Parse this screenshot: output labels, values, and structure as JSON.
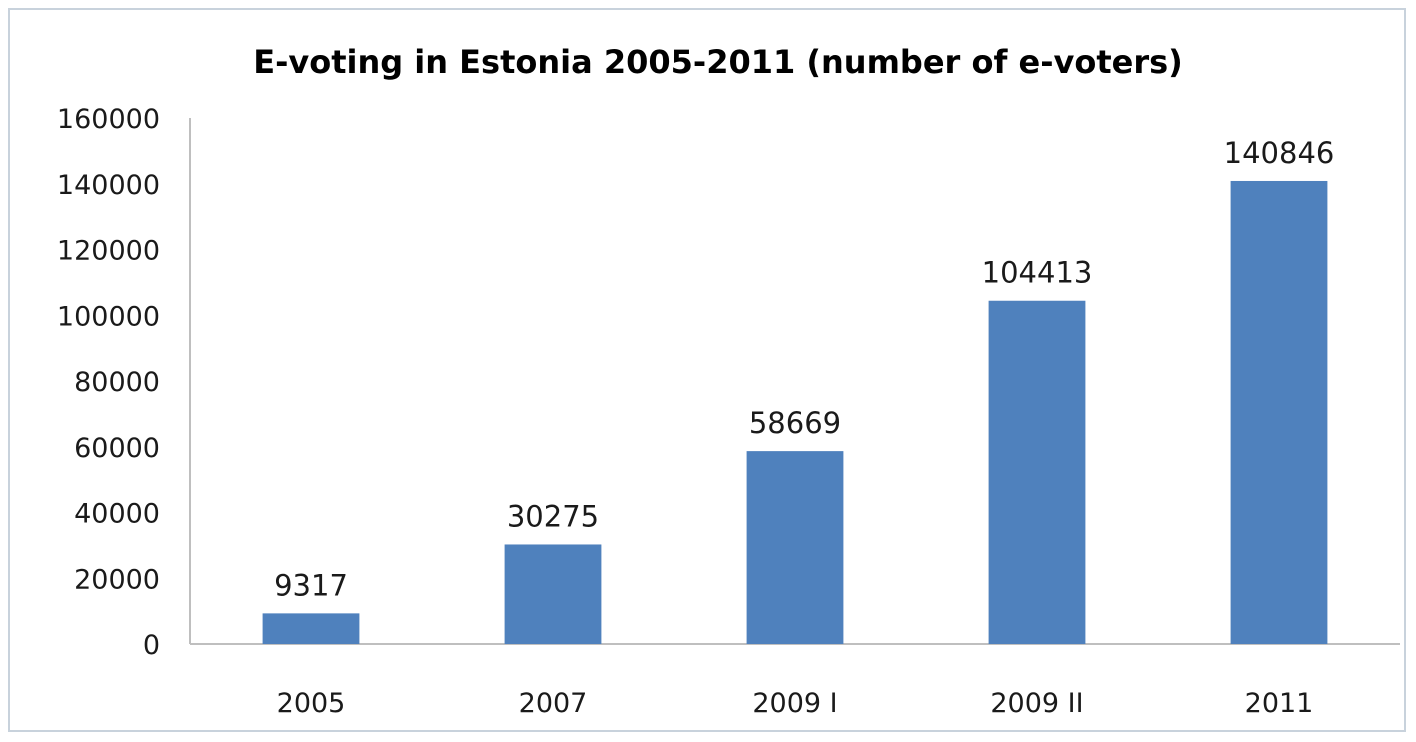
{
  "chart_data": {
    "type": "bar",
    "title": "E-voting in Estonia 2005-2011 (number of e-voters)",
    "xlabel": "",
    "ylabel": "",
    "categories": [
      "2005",
      "2007",
      "2009 I",
      "2009 II",
      "2011"
    ],
    "values": [
      9317,
      30275,
      58669,
      104413,
      140846
    ],
    "data_labels": [
      "9317",
      "30275",
      "58669",
      "104413",
      "140846"
    ],
    "ylim": [
      0,
      160000
    ],
    "yticks": [
      0,
      20000,
      40000,
      60000,
      80000,
      100000,
      120000,
      140000,
      160000
    ],
    "ytick_labels": [
      "0",
      "20000",
      "40000",
      "60000",
      "80000",
      "100000",
      "120000",
      "140000",
      "160000"
    ],
    "grid": false,
    "legend": "none",
    "colors": {
      "bar": "#4f81bd",
      "axis": "#bfbfbf",
      "text": "#1a1a1a"
    }
  }
}
